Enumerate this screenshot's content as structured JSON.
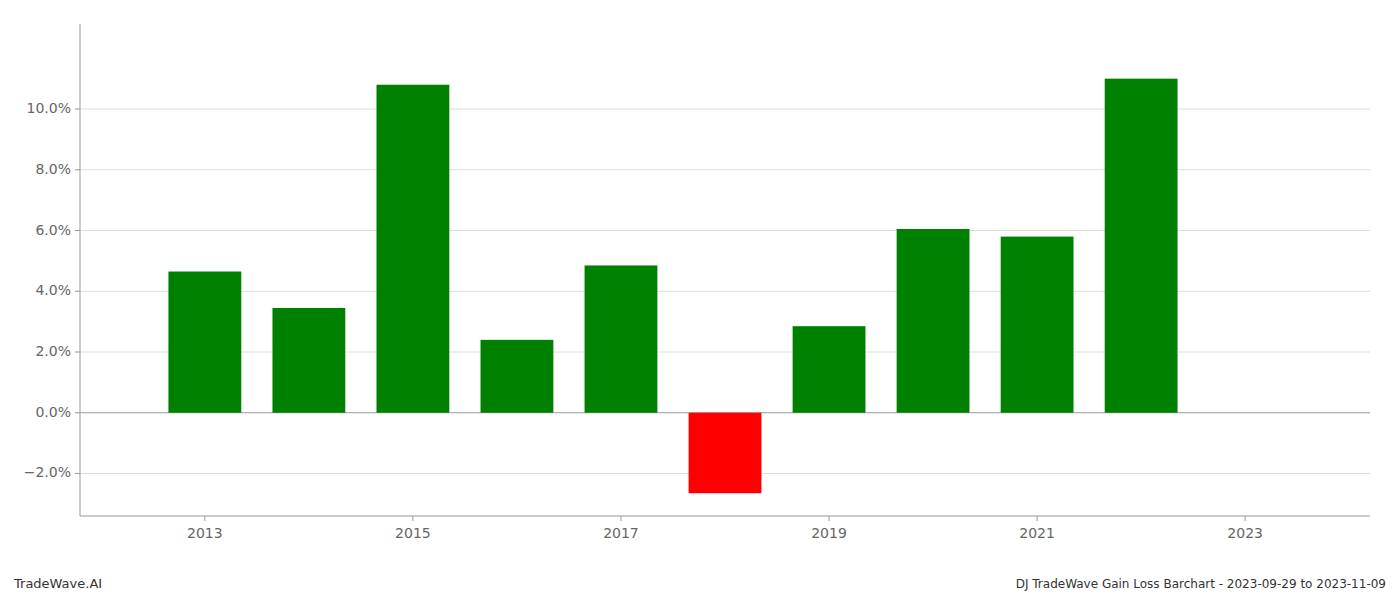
{
  "chart_data": {
    "type": "bar",
    "x": [
      2013,
      2014,
      2015,
      2016,
      2017,
      2018,
      2019,
      2020,
      2021,
      2022
    ],
    "values": [
      0.0465,
      0.0345,
      0.108,
      0.024,
      0.0485,
      -0.0265,
      0.0285,
      0.0605,
      0.058,
      0.11
    ],
    "colors": [
      "#008000",
      "#008000",
      "#008000",
      "#008000",
      "#008000",
      "#ff0000",
      "#008000",
      "#008000",
      "#008000",
      "#008000"
    ],
    "xlim": [
      2011.8,
      2024.2
    ],
    "xticks": [
      2013,
      2015,
      2017,
      2019,
      2021,
      2023
    ],
    "ylim": [
      -0.034,
      0.128
    ],
    "yticks": [
      {
        "value": -0.02,
        "label": "−2.0%"
      },
      {
        "value": 0.0,
        "label": "0.0%"
      },
      {
        "value": 0.02,
        "label": "2.0%"
      },
      {
        "value": 0.04,
        "label": "4.0%"
      },
      {
        "value": 0.06,
        "label": "6.0%"
      },
      {
        "value": 0.08,
        "label": "8.0%"
      },
      {
        "value": 0.1,
        "label": "10.0%"
      }
    ],
    "grid": true,
    "annotations": [
      "TradeWave.AI",
      "DJ TradeWave Gain Loss Barchart - 2023-09-29 to 2023-11-09"
    ]
  }
}
